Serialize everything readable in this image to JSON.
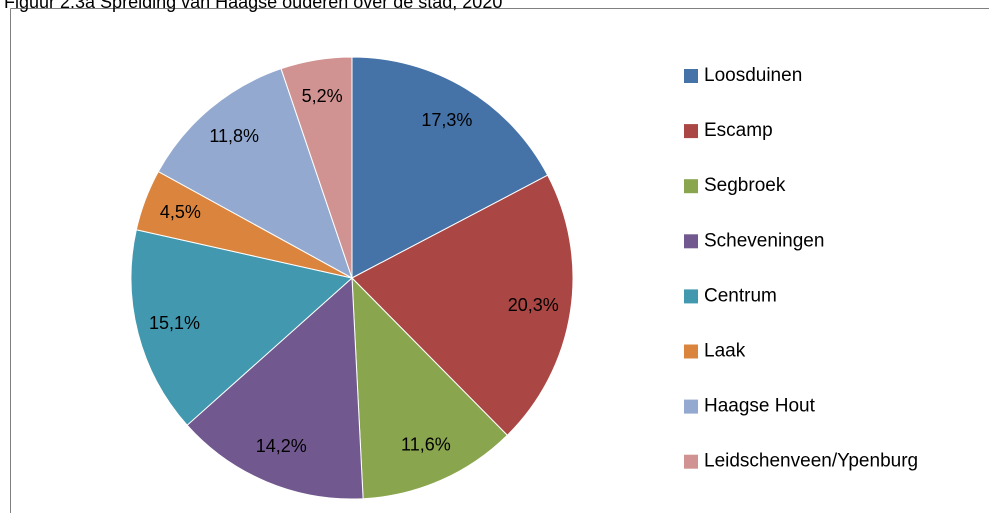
{
  "chart_data": {
    "type": "pie",
    "title": "Figuur 2.3a Spreiding van Haagse ouderen over de stad, 2020",
    "categories": [
      "Loosduinen",
      "Escamp",
      "Segbroek",
      "Scheveningen",
      "Centrum",
      "Laak",
      "Haagse Hout",
      "Leidschenveen/Ypenburg"
    ],
    "values": [
      17.3,
      20.3,
      11.6,
      14.2,
      15.1,
      4.5,
      11.8,
      5.2
    ],
    "value_labels": [
      "17,3%",
      "20,3%",
      "11,6%",
      "14,2%",
      "15,1%",
      "4,5%",
      "11,8%",
      "5,2%"
    ],
    "colors": [
      "#4572a7",
      "#aa4643",
      "#89a54e",
      "#71588f",
      "#4198af",
      "#db843d",
      "#93a9cf",
      "#d19392"
    ],
    "legend": "right"
  }
}
